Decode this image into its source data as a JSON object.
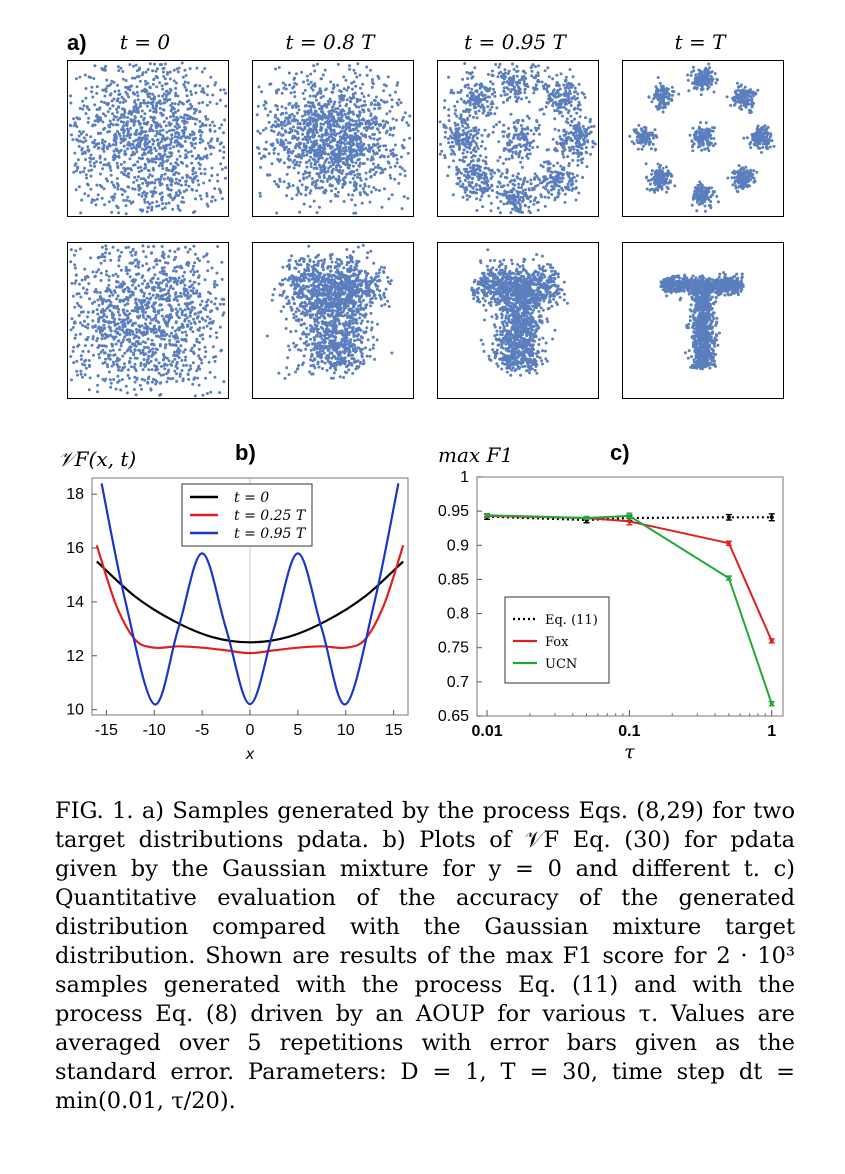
{
  "panel_a": {
    "letter": "a)",
    "column_titles": [
      "t = 0",
      "t = 0.8 T",
      "t = 0.95 T",
      "t = T"
    ],
    "row_targets": [
      "Gaussian mixture",
      "T shape"
    ]
  },
  "panel_b": {
    "letter": "b)",
    "ylabel": "𝒱F(x, t)",
    "xlabel": "x"
  },
  "panel_c": {
    "letter": "c)",
    "ylabel": "max F1",
    "xlabel": "τ"
  },
  "chart_data": [
    {
      "type": "line",
      "id": "b",
      "xlabel": "x",
      "ylabel": "𝒱F(x, t)",
      "xlim": [
        -16.5,
        16.5
      ],
      "ylim": [
        9.8,
        18.6
      ],
      "xticks": [
        -15,
        -10,
        -5,
        0,
        5,
        10,
        15
      ],
      "xtick_labels": [
        "-15",
        "-10",
        "-5",
        "0",
        "5",
        "10",
        "15"
      ],
      "yticks": [
        10,
        12,
        14,
        16,
        18
      ],
      "legend_position": "top-center",
      "series": [
        {
          "name": "t = 0",
          "color": "#000000",
          "x": [
            -16,
            -12,
            -8,
            -4,
            0,
            4,
            8,
            12,
            16
          ],
          "values": [
            15.5,
            14.2,
            13.3,
            12.7,
            12.5,
            12.7,
            13.3,
            14.2,
            15.5
          ]
        },
        {
          "name": "t = 0.25 T",
          "color": "#e02020",
          "x": [
            -16,
            -14,
            -12,
            -10,
            -7.5,
            -5,
            -2.5,
            0,
            2.5,
            5,
            7.5,
            10,
            12,
            14,
            16
          ],
          "values": [
            16.1,
            13.9,
            12.6,
            12.3,
            12.35,
            12.3,
            12.2,
            12.1,
            12.2,
            12.3,
            12.35,
            12.3,
            12.6,
            13.9,
            16.1
          ]
        },
        {
          "name": "t = 0.95 T",
          "color": "#1a35c8",
          "x": [
            -15.5,
            -13,
            -10,
            -7.5,
            -5,
            -2.5,
            0,
            2.5,
            5,
            7.5,
            10,
            13,
            15.5
          ],
          "values": [
            18.4,
            14.0,
            10.2,
            13.0,
            15.8,
            13.0,
            10.2,
            13.0,
            15.8,
            13.0,
            10.2,
            14.0,
            18.4
          ]
        }
      ]
    },
    {
      "type": "line",
      "id": "c",
      "xlabel": "τ",
      "ylabel": "max F1",
      "xscale": "log",
      "xlim": [
        0.0085,
        1.2
      ],
      "ylim": [
        0.65,
        1.0
      ],
      "xticks": [
        0.01,
        0.1,
        1
      ],
      "xtick_labels": [
        "0.01",
        "0.1",
        "1"
      ],
      "yticks": [
        0.65,
        0.7,
        0.75,
        0.8,
        0.85,
        0.9,
        0.95,
        1
      ],
      "ytick_labels": [
        "0.65",
        "0.7",
        "0.75",
        "0.8",
        "0.85",
        "0.9",
        "0.95",
        "1"
      ],
      "legend_position": "center-left",
      "series": [
        {
          "name": "Eq. (11)",
          "color": "#000000",
          "style": "dotted",
          "x": [
            0.01,
            0.05,
            0.1,
            0.5,
            1
          ],
          "values": [
            0.942,
            0.937,
            0.94,
            0.941,
            0.941
          ],
          "errors": [
            0.004,
            0.004,
            0.004,
            0.004,
            0.005
          ]
        },
        {
          "name": "Fox",
          "color": "#e02020",
          "style": "solid",
          "x": [
            0.01,
            0.05,
            0.1,
            0.5,
            1
          ],
          "values": [
            0.943,
            0.94,
            0.935,
            0.903,
            0.76
          ],
          "errors": [
            0.002,
            0.002,
            0.005,
            0.003,
            0.003
          ]
        },
        {
          "name": "UCN",
          "color": "#22a83a",
          "style": "solid",
          "x": [
            0.01,
            0.05,
            0.1,
            0.5,
            1
          ],
          "values": [
            0.944,
            0.94,
            0.943,
            0.852,
            0.668
          ],
          "errors": [
            0.002,
            0.002,
            0.004,
            0.003,
            0.003
          ]
        }
      ]
    }
  ],
  "caption": {
    "text": "FIG. 1. a) Samples generated by the process Eqs. (8,29) for two target distributions pdata. b) Plots of 𝒱F Eq. (30) for pdata given by the Gaussian mixture for y = 0 and different t. c) Quantitative evaluation of the accuracy of the generated distribution compared with the Gaussian mixture target distribution. Shown are results of the max F1 score for 2 · 10³ samples generated with the process Eq. (11) and with the process Eq. (8) driven by an AOUP for various τ. Values are averaged over 5 repetitions with error bars given as the standard error. Parameters: D = 1, T = 30, time step dt = min(0.01, τ/20)."
  },
  "colors": {
    "scatter_point": "#5b7fbd",
    "axis": "#555555"
  }
}
